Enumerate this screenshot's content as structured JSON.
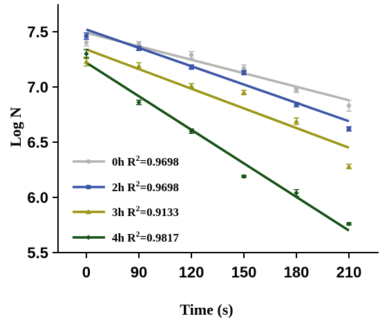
{
  "chart_data": {
    "type": "scatter",
    "xlabel": "Time (s)",
    "ylabel": "Log N",
    "categories": [
      "0",
      "90",
      "120",
      "150",
      "180",
      "210"
    ],
    "ylim": [
      5.5,
      7.75
    ],
    "yticks": [
      "5.5",
      "6.0",
      "6.5",
      "7.0",
      "7.5"
    ],
    "ytick_values": [
      5.5,
      6.0,
      6.5,
      7.0,
      7.5
    ],
    "grid": false,
    "legend_position": "bottom-left",
    "series": [
      {
        "name": "0h",
        "r2_label": "R",
        "r2_sup": "2",
        "r2_value": "=0.9698",
        "color": "#b4b4b4",
        "marker": "circle",
        "values": [
          7.4,
          7.39,
          7.29,
          7.17,
          6.97,
          6.83
        ],
        "errors": [
          0.03,
          0.02,
          0.03,
          0.03,
          0.02,
          0.05
        ],
        "fit": [
          7.49,
          6.88
        ]
      },
      {
        "name": "2h",
        "r2_label": "R",
        "r2_sup": "2",
        "r2_value": "=0.9698",
        "color": "#3c55a5",
        "marker": "square",
        "values": [
          7.46,
          7.35,
          7.18,
          7.13,
          6.84,
          6.62
        ],
        "errors": [
          0.03,
          0.02,
          0.02,
          0.02,
          0.02,
          0.02
        ],
        "fit": [
          7.52,
          6.69
        ]
      },
      {
        "name": "3h",
        "r2_label": "R",
        "r2_sup": "2",
        "r2_value": "=0.9133",
        "color": "#9b9614",
        "marker": "triangle",
        "values": [
          7.23,
          7.19,
          7.01,
          6.95,
          6.69,
          6.28
        ],
        "errors": [
          0.04,
          0.03,
          0.02,
          0.02,
          0.03,
          0.02
        ],
        "fit": [
          7.34,
          6.45
        ]
      },
      {
        "name": "4h",
        "r2_label": "R",
        "r2_sup": "2",
        "r2_value": "=0.9817",
        "color": "#145014",
        "marker": "diamond",
        "values": [
          7.3,
          6.86,
          6.6,
          6.19,
          6.04,
          5.76
        ],
        "errors": [
          0.04,
          0.02,
          0.02,
          0.01,
          0.03,
          0.01
        ],
        "fit": [
          7.22,
          5.7
        ]
      }
    ]
  }
}
